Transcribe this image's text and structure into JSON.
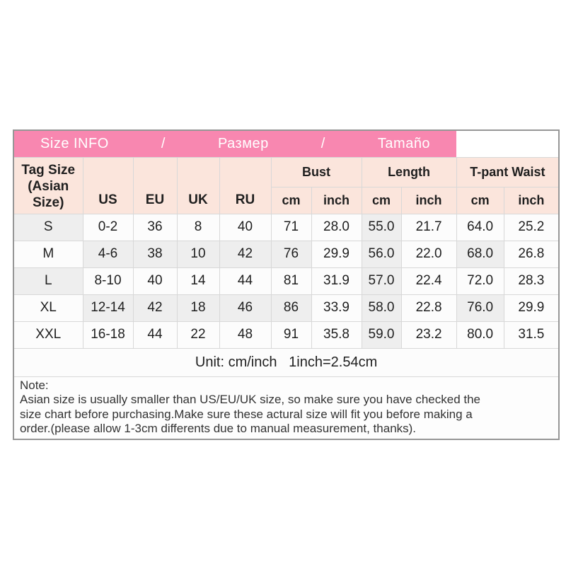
{
  "colors": {
    "header_pink": "#f887b0",
    "header_peach": "#fbe5dc",
    "cell_shade": "#eeeeee",
    "cell_bg": "#fcfcfc",
    "border_inner": "#d8d8d8",
    "border_outer": "#969696",
    "text_dark": "#1f1f1f"
  },
  "title_bar": {
    "items": [
      "Size INFO",
      "/",
      "Размер",
      "/",
      "Tamaño"
    ]
  },
  "table": {
    "tag_header_lines": [
      "Tag Size",
      "(Asian",
      "Size)"
    ],
    "region_headers": [
      "US",
      "EU",
      "UK",
      "RU"
    ],
    "group_headers": [
      "Bust",
      "Length",
      "T-pant Waist"
    ],
    "unit_headers": [
      "cm",
      "inch",
      "cm",
      "inch",
      "cm",
      "inch"
    ],
    "rows": [
      {
        "tag": "S",
        "cells": [
          "0-2",
          "36",
          "8",
          "40",
          "71",
          "28.0",
          "55.0",
          "21.7",
          "64.0",
          "25.2"
        ],
        "shaded": [
          0,
          7
        ]
      },
      {
        "tag": "M",
        "cells": [
          "4-6",
          "38",
          "10",
          "42",
          "76",
          "29.9",
          "56.0",
          "22.0",
          "68.0",
          "26.8"
        ],
        "shaded": [
          1,
          2,
          3,
          4,
          5,
          7,
          9
        ]
      },
      {
        "tag": "L",
        "cells": [
          "8-10",
          "40",
          "14",
          "44",
          "81",
          "31.9",
          "57.0",
          "22.4",
          "72.0",
          "28.3"
        ],
        "shaded": [
          0,
          7
        ]
      },
      {
        "tag": "XL",
        "cells": [
          "12-14",
          "42",
          "18",
          "46",
          "86",
          "33.9",
          "58.0",
          "22.8",
          "76.0",
          "29.9"
        ],
        "shaded": [
          1,
          2,
          3,
          4,
          5,
          7,
          9
        ]
      },
      {
        "tag": "XXL",
        "cells": [
          "16-18",
          "44",
          "22",
          "48",
          "91",
          "35.8",
          "59.0",
          "23.2",
          "80.0",
          "31.5"
        ],
        "shaded": [
          7
        ]
      }
    ],
    "unit_note": "Unit: cm/inch   1inch=2.54cm"
  },
  "note": {
    "title": "Note:",
    "lines": [
      "Asian size is usually smaller than US/EU/UK size, so make sure you have checked the",
      "size chart before purchasing.Make sure these actural size will fit you before making a",
      "order.(please allow 1-3cm differents due to manual measurement, thanks)."
    ]
  }
}
